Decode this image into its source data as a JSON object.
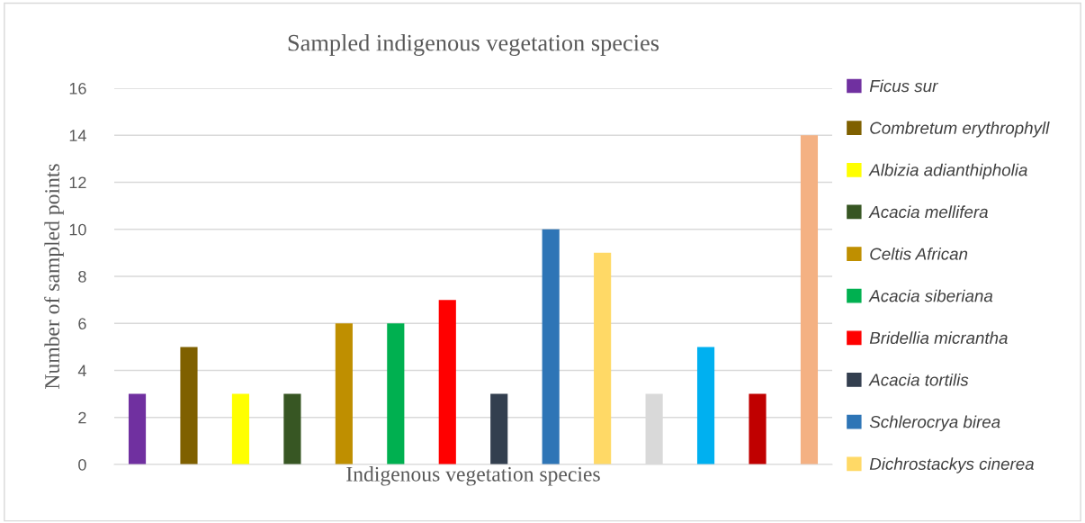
{
  "chart_data": {
    "type": "bar",
    "title": "Sampled indigenous vegetation species",
    "xlabel": "Indigenous vegetation species",
    "ylabel": "Number of sampled points",
    "categories": [
      null
    ],
    "series": [
      {
        "name": "Ficus sur",
        "color": "#7030a0",
        "values": [
          3
        ]
      },
      {
        "name": "Combretum erythrophyll",
        "color": "#7f6000",
        "values": [
          5
        ]
      },
      {
        "name": "Albizia adianthipholia",
        "color": "#ffff00",
        "values": [
          3
        ]
      },
      {
        "name": "Acacia mellifera",
        "color": "#375623",
        "values": [
          3
        ]
      },
      {
        "name": "Celtis African",
        "color": "#bf8f00",
        "values": [
          6
        ]
      },
      {
        "name": "Acacia siberiana",
        "color": "#00b050",
        "values": [
          6
        ]
      },
      {
        "name": "Bridellia micrantha",
        "color": "#ff0000",
        "values": [
          7
        ]
      },
      {
        "name": "Acacia tortilis",
        "color": "#333f4f",
        "values": [
          3
        ]
      },
      {
        "name": "Schlerocrya birea",
        "color": "#2e75b6",
        "values": [
          10
        ]
      },
      {
        "name": "Dichrostackys cinerea",
        "color": "#ffd966",
        "values": [
          9
        ]
      },
      {
        "color": "#d9d9d9",
        "values": [
          3
        ]
      },
      {
        "color": "#00b0f0",
        "values": [
          5
        ]
      },
      {
        "color": "#c00000",
        "values": [
          3
        ]
      },
      {
        "color": "#f4b183",
        "values": [
          14
        ]
      }
    ],
    "ylim": [
      0,
      16
    ],
    "yticks": [
      0,
      2,
      4,
      6,
      8,
      10,
      12,
      14,
      16
    ],
    "grid": "y",
    "legend": "right"
  }
}
